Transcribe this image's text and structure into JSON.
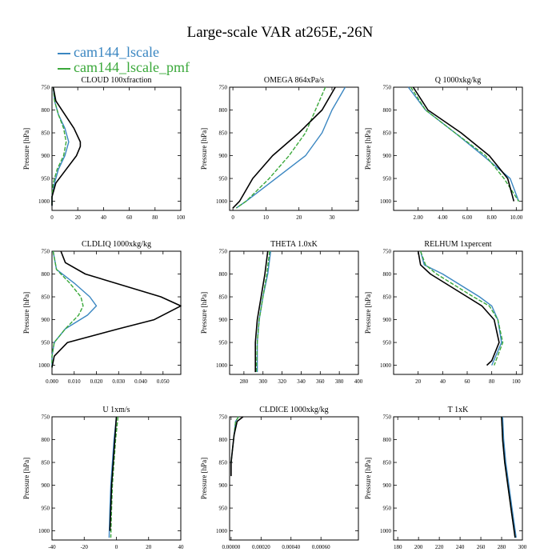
{
  "title": "Large-scale VAR at265E,-26N",
  "legend": [
    {
      "name": "cam144_lscale",
      "color": "#3a86c1"
    },
    {
      "name": "cam144_lscale_pmf",
      "color": "#3aa83a"
    }
  ],
  "line_colors": {
    "control": "#000000"
  },
  "chart_data": [
    {
      "type": "line",
      "title": "CLOUD 100xfraction",
      "ylabel": "Pressure [hPa]",
      "xlim": [
        0,
        100
      ],
      "ylim": [
        1020,
        750
      ],
      "xticks": [
        0,
        20,
        40,
        60,
        80,
        100
      ],
      "xtick_labels": [
        "0",
        "20",
        "40",
        "60",
        "80",
        "100"
      ],
      "yticks": [
        750,
        800,
        850,
        900,
        950,
        1000
      ],
      "ytick_labels": [
        "750",
        "800",
        "850",
        "900",
        "950",
        "1000"
      ],
      "series": [
        {
          "y": [
            750,
            780,
            810,
            840,
            870,
            900,
            930,
            960,
            990,
            1010
          ],
          "x": [
            1,
            2,
            5,
            10,
            13,
            10,
            5,
            2,
            0,
            0
          ]
        },
        {
          "y": [
            750,
            780,
            810,
            840,
            870,
            900,
            930,
            960,
            990,
            1010
          ],
          "x": [
            1,
            2,
            5,
            9,
            11,
            9,
            4,
            1,
            0,
            0
          ]
        },
        {
          "y": [
            750,
            780,
            810,
            840,
            870,
            880,
            900,
            930,
            960,
            990,
            1010
          ],
          "x": [
            1,
            3,
            10,
            17,
            22,
            22,
            19,
            11,
            3,
            0,
            0
          ]
        }
      ]
    },
    {
      "type": "line",
      "title": "OMEGA 864xPa/s",
      "ylabel": "Pressure [hPa]",
      "xlim": [
        -1,
        38
      ],
      "ylim": [
        1020,
        750
      ],
      "xticks": [
        0,
        10,
        20,
        30
      ],
      "xtick_labels": [
        "0",
        "10",
        "20",
        "30"
      ],
      "yticks": [
        750,
        800,
        850,
        900,
        950,
        1000
      ],
      "ytick_labels": [
        "750",
        "800",
        "850",
        "900",
        "950",
        "1000"
      ],
      "series": [
        {
          "y": [
            750,
            800,
            850,
            900,
            950,
            1000,
            1015
          ],
          "x": [
            34,
            30,
            27,
            22,
            13,
            4,
            1
          ]
        },
        {
          "y": [
            750,
            800,
            850,
            900,
            950,
            1000,
            1015
          ],
          "x": [
            28,
            25,
            22,
            17,
            11,
            4,
            1
          ]
        },
        {
          "y": [
            750,
            800,
            850,
            900,
            950,
            1000,
            1015
          ],
          "x": [
            31,
            27,
            20,
            12,
            6,
            2,
            0
          ]
        }
      ]
    },
    {
      "type": "line",
      "title": "Q 1000xkg/kg",
      "ylabel": "Pressure [hPa]",
      "xlim": [
        0,
        10.5
      ],
      "ylim": [
        1020,
        750
      ],
      "xticks": [
        2,
        4,
        6,
        8,
        10
      ],
      "xtick_labels": [
        "2.00",
        "4.00",
        "6.00",
        "8.00",
        "10.00"
      ],
      "yticks": [
        750,
        800,
        850,
        900,
        950,
        1000
      ],
      "ytick_labels": [
        "750",
        "800",
        "850",
        "900",
        "950",
        "1000"
      ],
      "series": [
        {
          "y": [
            750,
            800,
            850,
            900,
            950,
            1000
          ],
          "x": [
            1.2,
            2.6,
            5.0,
            7.3,
            9.5,
            10.2
          ]
        },
        {
          "y": [
            750,
            800,
            850,
            900,
            950,
            1000
          ],
          "x": [
            1.4,
            2.6,
            5.0,
            7.5,
            9.0,
            10.2
          ]
        },
        {
          "y": [
            750,
            800,
            850,
            900,
            950,
            1000
          ],
          "x": [
            1.6,
            2.8,
            5.5,
            7.8,
            9.3,
            9.8
          ]
        }
      ]
    },
    {
      "type": "line",
      "title": "CLDLIQ 1000xkg/kg",
      "ylabel": "Pressure [hPa]",
      "xlim": [
        0,
        0.058
      ],
      "ylim": [
        1020,
        750
      ],
      "xticks": [
        0,
        0.01,
        0.02,
        0.03,
        0.04,
        0.05
      ],
      "xtick_labels": [
        "0.000",
        "0.010",
        "0.020",
        "0.030",
        "0.040",
        "0.050"
      ],
      "yticks": [
        750,
        800,
        850,
        900,
        950,
        1000
      ],
      "ytick_labels": [
        "750",
        "800",
        "850",
        "900",
        "950",
        "1000"
      ],
      "series": [
        {
          "y": [
            750,
            790,
            820,
            850,
            870,
            890,
            920,
            950,
            980,
            1005
          ],
          "x": [
            0.0005,
            0.002,
            0.01,
            0.017,
            0.02,
            0.016,
            0.006,
            0.001,
            0,
            0
          ]
        },
        {
          "y": [
            750,
            790,
            820,
            850,
            870,
            890,
            920,
            950,
            980,
            1005
          ],
          "x": [
            0.0005,
            0.002,
            0.008,
            0.013,
            0.014,
            0.012,
            0.006,
            0.001,
            0,
            0
          ]
        },
        {
          "y": [
            750,
            775,
            800,
            850,
            870,
            900,
            920,
            950,
            980,
            1005
          ],
          "x": [
            0.004,
            0.006,
            0.015,
            0.049,
            0.058,
            0.046,
            0.03,
            0.007,
            0.001,
            0
          ]
        }
      ]
    },
    {
      "type": "line",
      "title": "THETA 1.0xK",
      "ylabel": "Pressure [hPa]",
      "xlim": [
        265,
        400
      ],
      "ylim": [
        1020,
        750
      ],
      "xticks": [
        280,
        300,
        320,
        340,
        360,
        380,
        400
      ],
      "xtick_labels": [
        "280",
        "300",
        "320",
        "340",
        "360",
        "380",
        "400"
      ],
      "yticks": [
        750,
        800,
        850,
        900,
        950,
        1000
      ],
      "ytick_labels": [
        "750",
        "800",
        "850",
        "900",
        "950",
        "1000"
      ],
      "series": [
        {
          "y": [
            750,
            800,
            850,
            900,
            950,
            1015
          ],
          "x": [
            308,
            305,
            300,
            296,
            294,
            294
          ]
        },
        {
          "y": [
            750,
            800,
            850,
            900,
            950,
            1015
          ],
          "x": [
            307,
            304,
            300,
            296,
            294,
            293
          ]
        },
        {
          "y": [
            750,
            800,
            850,
            900,
            950,
            1015
          ],
          "x": [
            305,
            302,
            298,
            294,
            292,
            292
          ]
        }
      ]
    },
    {
      "type": "line",
      "title": "RELHUM 1xpercent",
      "ylabel": "Pressure [hPa]",
      "xlim": [
        0,
        105
      ],
      "ylim": [
        1020,
        750
      ],
      "xticks": [
        20,
        40,
        60,
        80,
        100
      ],
      "xtick_labels": [
        "20",
        "40",
        "60",
        "80",
        "100"
      ],
      "yticks": [
        750,
        800,
        850,
        900,
        950,
        1000
      ],
      "ytick_labels": [
        "750",
        "800",
        "850",
        "900",
        "950",
        "1000"
      ],
      "series": [
        {
          "y": [
            750,
            780,
            800,
            850,
            870,
            900,
            950,
            1000
          ],
          "x": [
            22,
            25,
            40,
            70,
            80,
            85,
            88,
            80
          ]
        },
        {
          "y": [
            750,
            780,
            800,
            850,
            870,
            900,
            950,
            1000
          ],
          "x": [
            22,
            26,
            35,
            65,
            78,
            85,
            89,
            82
          ]
        },
        {
          "y": [
            750,
            780,
            800,
            850,
            870,
            900,
            950,
            990,
            1000
          ],
          "x": [
            20,
            22,
            30,
            60,
            72,
            82,
            86,
            80,
            76
          ]
        }
      ]
    },
    {
      "type": "line",
      "title": "U 1xm/s",
      "ylabel": "Pressure [hPa]",
      "xlim": [
        -40,
        40
      ],
      "ylim": [
        1020,
        750
      ],
      "xticks": [
        -40,
        -20,
        0,
        20,
        40
      ],
      "xtick_labels": [
        "-40",
        "-20",
        "0",
        "20",
        "40"
      ],
      "yticks": [
        750,
        800,
        850,
        900,
        950,
        1000
      ],
      "ytick_labels": [
        "750",
        "800",
        "850",
        "900",
        "950",
        "1000"
      ],
      "series": [
        {
          "y": [
            750,
            800,
            850,
            900,
            950,
            1015
          ],
          "x": [
            0,
            -1.5,
            -2.5,
            -3.5,
            -4,
            -4.5
          ]
        },
        {
          "y": [
            750,
            800,
            850,
            900,
            950,
            1015
          ],
          "x": [
            1,
            -0.5,
            -1.5,
            -2.5,
            -3,
            -3.5
          ]
        },
        {
          "y": [
            750,
            800,
            850,
            900,
            950,
            1000
          ],
          "x": [
            0,
            -1,
            -2,
            -3,
            -3.5,
            -4
          ]
        }
      ]
    },
    {
      "type": "line",
      "title": "CLDICE 1000xkg/kg",
      "ylabel": "Pressure [hPa]",
      "xlim": [
        -1e-05,
        0.00085
      ],
      "ylim": [
        1020,
        750
      ],
      "xticks": [
        0,
        0.0002,
        0.0004,
        0.0006
      ],
      "xtick_labels": [
        "0.00000",
        "0.00020",
        "0.00040",
        "0.00060"
      ],
      "yticks": [
        750,
        800,
        850,
        900,
        950,
        1000
      ],
      "ytick_labels": [
        "750",
        "800",
        "850",
        "900",
        "950",
        "1000"
      ],
      "series": [
        {
          "y": [
            750,
            760,
            790,
            820,
            850
          ],
          "x": [
            5e-05,
            3e-05,
            2e-05,
            1e-05,
            0
          ]
        },
        {
          "y": [
            750,
            760,
            790,
            820,
            850
          ],
          "x": [
            5e-05,
            3e-05,
            2e-05,
            1e-05,
            0
          ]
        },
        {
          "y": [
            750,
            760,
            790,
            820,
            850,
            880
          ],
          "x": [
            8e-05,
            4e-05,
            2e-05,
            1e-05,
            0,
            0
          ]
        }
      ]
    },
    {
      "type": "line",
      "title": "T 1xK",
      "ylabel": "Pressure [hPa]",
      "xlim": [
        176,
        300
      ],
      "ylim": [
        1020,
        750
      ],
      "xticks": [
        180,
        200,
        220,
        240,
        260,
        280,
        300
      ],
      "xtick_labels": [
        "180",
        "200",
        "220",
        "240",
        "260",
        "280",
        "300"
      ],
      "yticks": [
        750,
        800,
        850,
        900,
        950,
        1000
      ],
      "ytick_labels": [
        "750",
        "800",
        "850",
        "900",
        "950",
        "1000"
      ],
      "series": [
        {
          "y": [
            750,
            800,
            850,
            900,
            950,
            1015
          ],
          "x": [
            281,
            282,
            284,
            287,
            290,
            294
          ]
        },
        {
          "y": [
            750,
            800,
            850,
            900,
            950,
            1015
          ],
          "x": [
            280,
            281,
            283,
            286,
            289,
            293
          ]
        },
        {
          "y": [
            750,
            800,
            850,
            900,
            950,
            1015
          ],
          "x": [
            280,
            281,
            283,
            286,
            289,
            293
          ]
        }
      ]
    }
  ]
}
